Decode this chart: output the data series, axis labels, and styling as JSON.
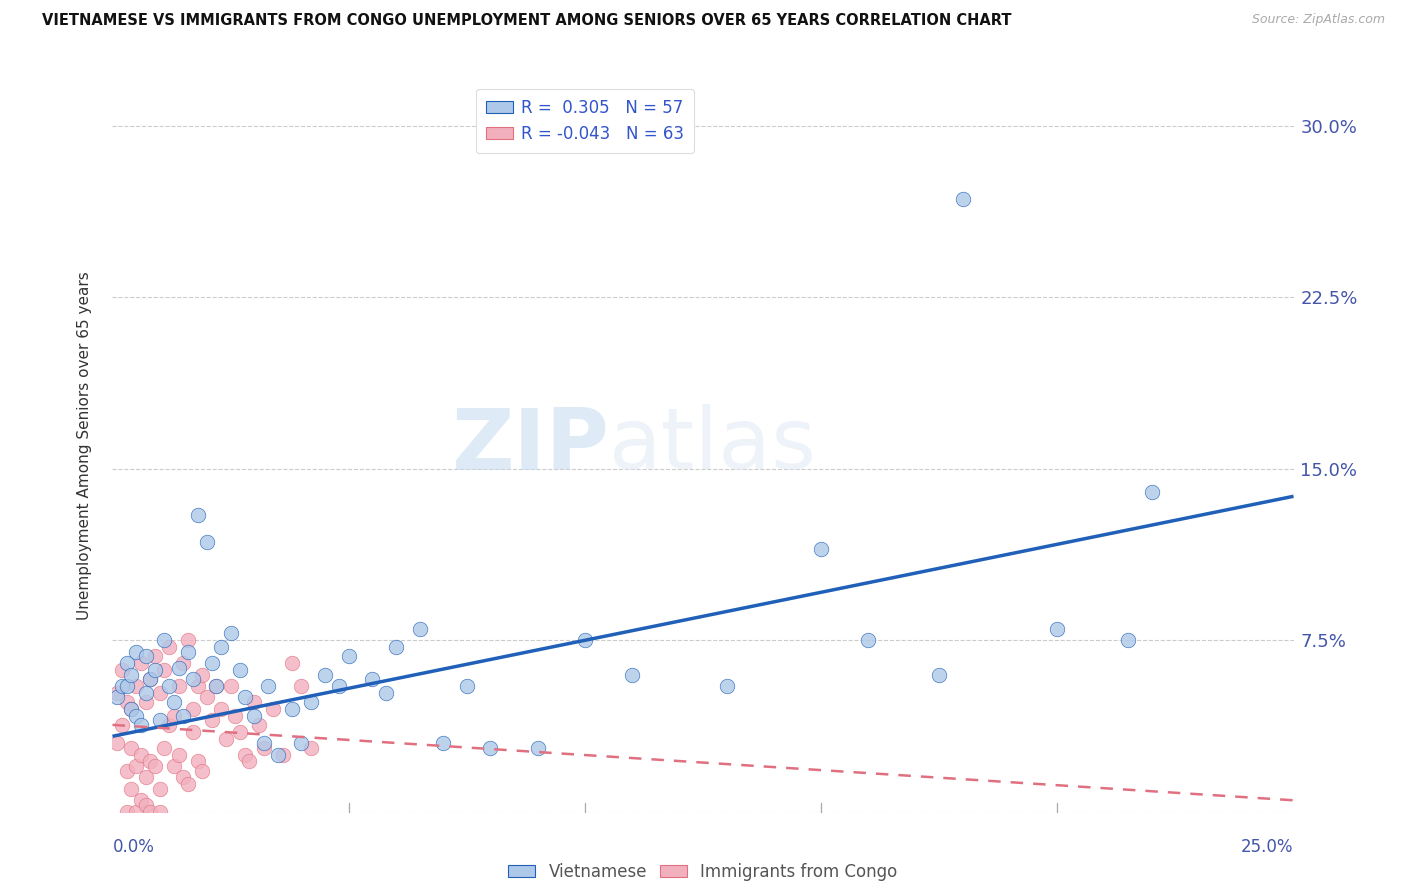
{
  "title": "VIETNAMESE VS IMMIGRANTS FROM CONGO UNEMPLOYMENT AMONG SENIORS OVER 65 YEARS CORRELATION CHART",
  "source": "Source: ZipAtlas.com",
  "ylabel": "Unemployment Among Seniors over 65 years",
  "xlim": [
    0.0,
    0.25
  ],
  "ylim": [
    0.0,
    0.32
  ],
  "xticks": [
    0.0,
    0.05,
    0.1,
    0.15,
    0.2,
    0.25
  ],
  "yticks": [
    0.0,
    0.075,
    0.15,
    0.225,
    0.3
  ],
  "yticklabels_right": [
    "",
    "7.5%",
    "15.0%",
    "22.5%",
    "30.0%"
  ],
  "r_vietnamese": 0.305,
  "n_vietnamese": 57,
  "r_congo": -0.043,
  "n_congo": 63,
  "vietnamese_color": "#adc8e8",
  "congo_color": "#f2b0be",
  "line_vietnamese_color": "#2060b8",
  "line_congo_color": "#e07080",
  "watermark_zip": "ZIP",
  "watermark_atlas": "atlas",
  "viet_line_x": [
    0.0,
    0.25
  ],
  "viet_line_y": [
    0.033,
    0.138
  ],
  "congo_line_x": [
    0.0,
    0.25
  ],
  "congo_line_y": [
    0.038,
    0.005
  ],
  "vietnamese_x": [
    0.001,
    0.002,
    0.003,
    0.003,
    0.004,
    0.004,
    0.005,
    0.005,
    0.006,
    0.007,
    0.007,
    0.008,
    0.009,
    0.01,
    0.011,
    0.012,
    0.013,
    0.014,
    0.015,
    0.016,
    0.017,
    0.018,
    0.02,
    0.021,
    0.022,
    0.023,
    0.025,
    0.027,
    0.028,
    0.03,
    0.032,
    0.033,
    0.035,
    0.038,
    0.04,
    0.042,
    0.045,
    0.048,
    0.05,
    0.055,
    0.058,
    0.06,
    0.065,
    0.07,
    0.075,
    0.08,
    0.09,
    0.1,
    0.11,
    0.13,
    0.15,
    0.16,
    0.175,
    0.18,
    0.2,
    0.215,
    0.22
  ],
  "vietnamese_y": [
    0.05,
    0.055,
    0.055,
    0.065,
    0.06,
    0.045,
    0.07,
    0.042,
    0.038,
    0.052,
    0.068,
    0.058,
    0.062,
    0.04,
    0.075,
    0.055,
    0.048,
    0.063,
    0.042,
    0.07,
    0.058,
    0.13,
    0.118,
    0.065,
    0.055,
    0.072,
    0.078,
    0.062,
    0.05,
    0.042,
    0.03,
    0.055,
    0.025,
    0.045,
    0.03,
    0.048,
    0.06,
    0.055,
    0.068,
    0.058,
    0.052,
    0.072,
    0.08,
    0.03,
    0.055,
    0.028,
    0.028,
    0.075,
    0.06,
    0.055,
    0.115,
    0.075,
    0.06,
    0.268,
    0.08,
    0.075,
    0.14
  ],
  "congo_x": [
    0.001,
    0.001,
    0.002,
    0.002,
    0.003,
    0.003,
    0.003,
    0.004,
    0.004,
    0.004,
    0.005,
    0.005,
    0.005,
    0.006,
    0.006,
    0.006,
    0.007,
    0.007,
    0.007,
    0.008,
    0.008,
    0.008,
    0.009,
    0.009,
    0.01,
    0.01,
    0.01,
    0.011,
    0.011,
    0.012,
    0.012,
    0.013,
    0.013,
    0.014,
    0.014,
    0.015,
    0.015,
    0.016,
    0.016,
    0.017,
    0.017,
    0.018,
    0.018,
    0.019,
    0.019,
    0.02,
    0.021,
    0.022,
    0.023,
    0.024,
    0.025,
    0.026,
    0.027,
    0.028,
    0.029,
    0.03,
    0.031,
    0.032,
    0.034,
    0.036,
    0.038,
    0.04,
    0.042
  ],
  "congo_y": [
    0.052,
    0.03,
    0.062,
    0.038,
    0.048,
    0.018,
    0.0,
    0.045,
    0.028,
    0.01,
    0.055,
    0.02,
    0.0,
    0.065,
    0.025,
    0.005,
    0.048,
    0.015,
    0.003,
    0.058,
    0.022,
    0.0,
    0.068,
    0.02,
    0.052,
    0.01,
    0.0,
    0.062,
    0.028,
    0.072,
    0.038,
    0.042,
    0.02,
    0.055,
    0.025,
    0.065,
    0.015,
    0.075,
    0.012,
    0.045,
    0.035,
    0.055,
    0.022,
    0.06,
    0.018,
    0.05,
    0.04,
    0.055,
    0.045,
    0.032,
    0.055,
    0.042,
    0.035,
    0.025,
    0.022,
    0.048,
    0.038,
    0.028,
    0.045,
    0.025,
    0.065,
    0.055,
    0.028
  ]
}
